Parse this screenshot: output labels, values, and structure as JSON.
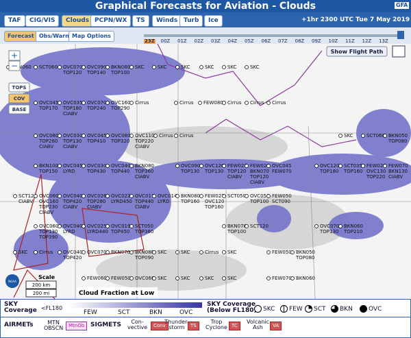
{
  "header": {
    "title": "Graphical Forecasts for Aviation - Clouds",
    "logo": "GFA"
  },
  "tabs": [
    "TAF",
    "CIG/VIS",
    "Clouds",
    "PCPN/WX",
    "TS",
    "Winds",
    "Turb",
    "Ice"
  ],
  "valid_time": "+1hr 2300 UTC Tue 7 May 2019",
  "modes": [
    "Forecast",
    "Obs/Warn",
    "Map Options"
  ],
  "times": [
    "23Z",
    "00Z",
    "01Z",
    "02Z",
    "03Z",
    "04Z",
    "05Z",
    "06Z",
    "07Z",
    "08Z",
    "09Z",
    "10Z",
    "11Z",
    "12Z",
    "13Z"
  ],
  "map": {
    "flight_path": "Show Flight Path",
    "zoom_in": "+",
    "zoom_out": "−",
    "layers": [
      "TOPS",
      "COV",
      "BASE"
    ],
    "scale": {
      "title": "Scale",
      "km": "200 km",
      "mi": "200 mi"
    },
    "caption": "Cloud Fraction at Low",
    "noaa": "NOAA",
    "stations": [
      [
        "FEW060"
      ],
      [
        "SCT060"
      ],
      [
        "OVC070",
        "TOP120"
      ],
      [
        "OVC090",
        "TOP140"
      ],
      [
        "BKN080",
        "TOP100"
      ],
      [
        "SKC"
      ],
      [
        "SKC"
      ],
      [
        "SKC"
      ],
      [
        "SKC"
      ],
      [
        "SKC"
      ],
      [
        "SKC"
      ],
      [
        "OVC045",
        "TOP170"
      ],
      [
        "OVC035",
        "TOP180",
        "CIABV"
      ],
      [
        "OVC070",
        "TOP240"
      ],
      [
        "OVC160",
        "TOP290"
      ],
      [
        "Cirrus"
      ],
      [
        "Cirrus"
      ],
      [
        "FEW080"
      ],
      [
        "Cirrus"
      ],
      [
        "Cirrus"
      ],
      [
        "Cirrus"
      ],
      [
        "OVC080",
        "TOP260",
        "CIABV"
      ],
      [
        "OVC030",
        "TOP130",
        "CIABV"
      ],
      [
        "OVC045",
        "TOP410"
      ],
      [
        "OVC080",
        "TOP320"
      ],
      [
        "OVC110",
        "TOP220",
        "CIABV"
      ],
      [
        "Cirrus"
      ],
      [
        "Cirrus"
      ],
      [
        "SKC"
      ],
      [
        "SCT060"
      ],
      [
        "BKN050",
        "TOP080"
      ],
      [
        "BKN100",
        "TOP150"
      ],
      [
        "OVC045",
        "LYRD"
      ],
      [
        "OVC030",
        "TOP430"
      ],
      [
        "OVC040",
        "TOP440"
      ],
      [
        "BKN080",
        "TOP360",
        "CIABV"
      ],
      [
        "OVC090",
        "TOP130"
      ],
      [
        "OVC120",
        "TOP130"
      ],
      [
        "FEW027",
        "TOP120",
        "CIABV"
      ],
      [
        "FEW023",
        "BKN070",
        "TOP120",
        "CIABV"
      ],
      [
        "OVC045",
        "FEW070"
      ],
      [
        "OVC120",
        "TOP180"
      ],
      [
        "SCT035",
        "TOP160"
      ],
      [
        "FEW028",
        "OVC130",
        "TOP220"
      ],
      [
        "FEW070",
        "BKN130",
        "CIABV"
      ],
      [
        "SCT120",
        "CIABV"
      ],
      [
        "OVC060",
        "OVC160",
        "TOP230",
        "CIABV"
      ],
      [
        "OVC040",
        "TOP420",
        "CIABV"
      ],
      [
        "OVC026",
        "TOP280",
        "CIABV"
      ],
      [
        "OVC022",
        "LYRD450"
      ],
      [
        "OVC017",
        "TOP440",
        "CIABV"
      ],
      [
        "OVC014",
        "LYRD"
      ],
      [
        "BKN080",
        "TOP160"
      ],
      [
        "FEW027",
        "OVC120",
        "TOP160"
      ],
      [
        "SCT050"
      ],
      [
        "OVC050",
        "TOP100"
      ],
      [
        "FEW050",
        "SCT090"
      ],
      [
        "OVC060",
        "TOP130",
        "TOP390"
      ],
      [
        "OVC040",
        "LYRD"
      ],
      [
        "OVC025",
        "LYRD440"
      ],
      [
        "OVC019",
        "TOP450"
      ],
      [
        "SCT050",
        "TOP380"
      ],
      [
        "BKN070",
        "TOP100"
      ],
      [
        "SCT120"
      ],
      [
        "OVC070",
        "TOP130"
      ],
      [
        "BKN060",
        "TOP210"
      ],
      [
        "SKC"
      ],
      [
        "Cirrus"
      ],
      [
        "OVC040",
        "TOP420"
      ],
      [
        "OVC070"
      ],
      [
        "BKN070"
      ],
      [
        "BKN080",
        "TOP090"
      ],
      [
        "SKC"
      ],
      [
        "SKC"
      ],
      [
        "Cirrus"
      ],
      [
        "SKC"
      ],
      [
        "FEW050"
      ],
      [
        "BKN050",
        "TOP080"
      ],
      [
        "FEW060"
      ],
      [
        "FEW050"
      ],
      [
        "OVC060"
      ],
      [
        "SKC"
      ],
      [
        "SKC"
      ],
      [
        "SKC"
      ],
      [
        "SKC"
      ],
      [
        "FEW070"
      ],
      [
        "BKN060"
      ]
    ]
  },
  "legend": {
    "sky_title": "SKY\nCoverage",
    "sky_level": "<FL180",
    "sky_levels": [
      "FEW",
      "SCT",
      "BKN",
      "OVC"
    ],
    "below_title": "SKY Coverage\n(Below FL180)",
    "below_levels": [
      "SKC",
      "FEW",
      "SCT",
      "BKN",
      "OVC"
    ],
    "airmets": "AIRMETs",
    "mtn": "MTN\nOBSCN",
    "mtn_icon": "MtnOb",
    "sigmets": "SIGMETS",
    "sigmet_items": [
      {
        "label": "Con-\nvective",
        "icon": "Conv"
      },
      {
        "label": "Thunder-\nstorm",
        "icon": "TS"
      },
      {
        "label": "Trop\nCyclone",
        "icon": "TC"
      },
      {
        "label": "Volcanic\nAsh",
        "icon": "VA"
      }
    ]
  }
}
